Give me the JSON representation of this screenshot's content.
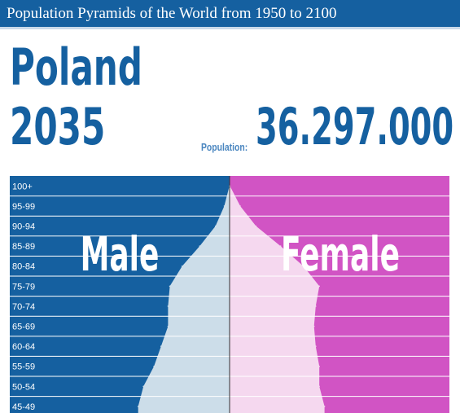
{
  "header": {
    "title": "Population Pyramids of the World from 1950 to 2100"
  },
  "country": "Poland",
  "year": "2035",
  "population": {
    "label": "Population:",
    "value": "36.297.000"
  },
  "colors": {
    "brand": "#1560a0",
    "male_bg": "#1560a0",
    "female_bg": "#d154c4",
    "male_fill": "#ccdde9",
    "female_fill": "#f5d8ef"
  },
  "chart_data": {
    "type": "bar",
    "orientation": "horizontal-pyramid",
    "categories": [
      "100+",
      "95-99",
      "90-94",
      "85-89",
      "80-84",
      "75-79",
      "70-74",
      "65-69",
      "60-64",
      "55-59",
      "50-54",
      "45-49"
    ],
    "series": [
      {
        "name": "Male",
        "values": [
          0.01,
          0.3,
          0.8,
          1.7,
          2.7,
          3.4,
          3.5,
          3.5,
          3.9,
          4.3,
          4.9,
          5.2
        ]
      },
      {
        "name": "Female",
        "values": [
          0.02,
          0.6,
          1.5,
          2.9,
          4.2,
          5.1,
          4.9,
          4.8,
          4.9,
          5.1,
          5.1,
          5.4
        ]
      }
    ],
    "xlim": [
      0,
      12.5
    ],
    "legend": [
      "Male",
      "Female"
    ]
  }
}
